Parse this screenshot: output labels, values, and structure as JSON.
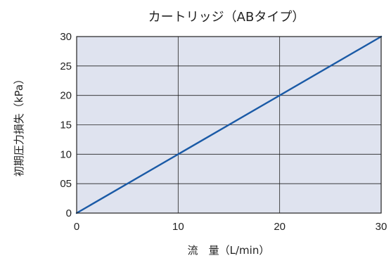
{
  "chart_data": {
    "type": "line",
    "title": "カートリッジ（ABタイプ）",
    "xlabel": "流　量（L/min）",
    "ylabel": "初期圧力損失（kPa）",
    "xlim": [
      0,
      30
    ],
    "ylim": [
      0,
      30
    ],
    "x_ticks": [
      "0",
      "10",
      "20",
      "30"
    ],
    "y_ticks": [
      "0",
      "05",
      "10",
      "15",
      "20",
      "25",
      "30"
    ],
    "series": [
      {
        "x": [
          0,
          30
        ],
        "y": [
          0,
          30
        ]
      }
    ],
    "grid": true,
    "colors": {
      "plot_background": "#dfe3ef",
      "line": "#1a5aa6",
      "grid": "#222222"
    }
  }
}
